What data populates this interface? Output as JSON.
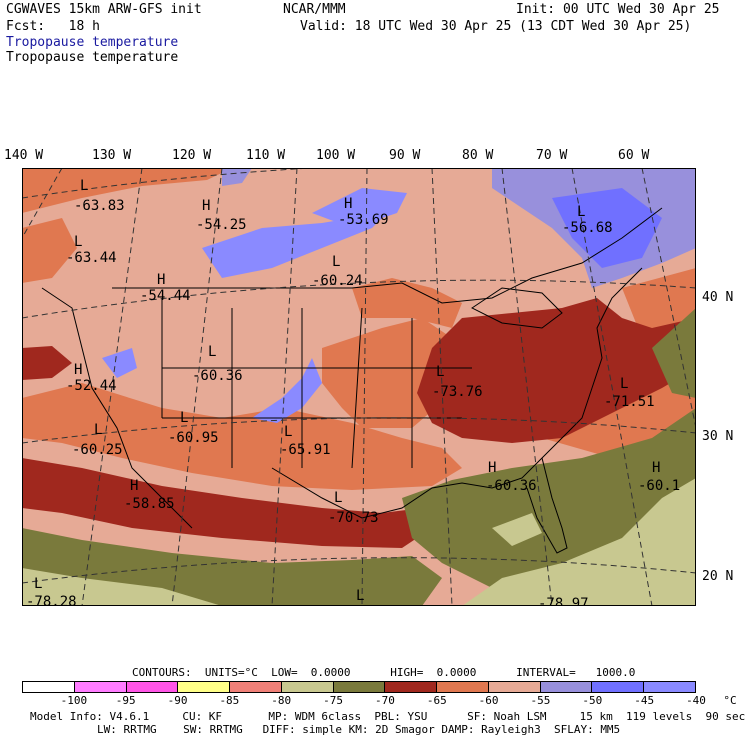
{
  "header": {
    "left1": "CGWAVES 15km ARW-GFS init",
    "left2": "Fcst:   18 h",
    "center": "NCAR/MMM",
    "init": "Init: 00 UTC Wed 30 Apr 25",
    "valid": "Valid: 18 UTC Wed 30 Apr 25 (13 CDT Wed 30 Apr 25)",
    "field_blue": "Tropopause temperature",
    "field_black": "Tropopause temperature"
  },
  "axes": {
    "lon_labels": [
      "140 W",
      "130 W",
      "120 W",
      "110 W",
      "100 W",
      "90 W",
      "80 W",
      "70 W",
      "60 W"
    ],
    "lat_labels": [
      "40 N",
      "30 N",
      "20 N"
    ]
  },
  "highs_lows": [
    {
      "mark": "L",
      "value": "-63.83"
    },
    {
      "mark": "H",
      "value": "-54.25"
    },
    {
      "mark": "H",
      "value": "-53.69"
    },
    {
      "mark": "L",
      "value": "-63.44"
    },
    {
      "mark": "L",
      "value": "-60.24"
    },
    {
      "mark": "L",
      "value": "-56.68"
    },
    {
      "mark": "H",
      "value": "-54.44"
    },
    {
      "mark": "L",
      "value": "-60.36"
    },
    {
      "mark": "H",
      "value": "-52.44"
    },
    {
      "mark": "L",
      "value": "-73.76"
    },
    {
      "mark": "L",
      "value": "-71.51"
    },
    {
      "mark": "L",
      "value": "-60.95"
    },
    {
      "mark": "L",
      "value": "-60.25"
    },
    {
      "mark": "L",
      "value": "-65.91"
    },
    {
      "mark": "H",
      "value": "-60.36"
    },
    {
      "mark": "H",
      "value": "-60.1"
    },
    {
      "mark": "H",
      "value": "-58.85"
    },
    {
      "mark": "L",
      "value": "-70.73"
    },
    {
      "mark": "L",
      "value": "-78.28"
    },
    {
      "mark": "L",
      "value": "-78.97"
    }
  ],
  "contours": {
    "text": "CONTOURS:  UNITS=°C  LOW=  0.0000      HIGH=  0.0000      INTERVAL=   1000.0"
  },
  "colorbar": {
    "colors": [
      "#ffffff",
      "#ff7cff",
      "#ff55e6",
      "#ffff88",
      "#f08078",
      "#c8c890",
      "#7a7a3c",
      "#a0281e",
      "#e07850",
      "#e6aa96",
      "#9890dc",
      "#7070ff",
      "#8a8aff"
    ],
    "ticks": [
      "-100",
      "-95",
      "-90",
      "-85",
      "-80",
      "-75",
      "-70",
      "-65",
      "-60",
      "-55",
      "-50",
      "-45",
      "-40",
      "°C"
    ]
  },
  "model_info": {
    "line1": "Model Info: V4.6.1     CU: KF       MP: WDM 6class  PBL: YSU      SF: Noah LSM     15 km  119 levels  90 sec",
    "line2": "LW: RRTMG    SW: RRTMG   DIFF: simple KM: 2D Smagor DAMP: Rayleigh3  SFLAY: MM5"
  }
}
